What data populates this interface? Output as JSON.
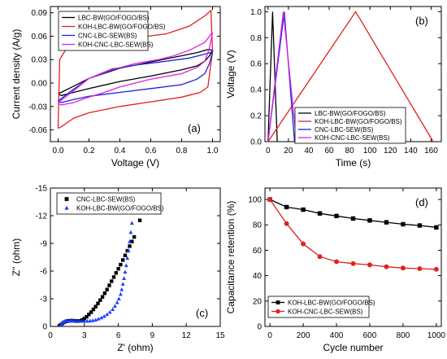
{
  "chart_data": [
    {
      "type": "line",
      "panel_label": "(a)",
      "xlabel": "Voltage (V)",
      "ylabel": "Current density (A/g)",
      "xlim": [
        -0.05,
        1.05
      ],
      "ylim": [
        -0.075,
        0.098
      ],
      "xticks": [
        0.0,
        0.2,
        0.4,
        0.6,
        0.8,
        1.0
      ],
      "xtick_labels": [
        "0.0",
        "0.2",
        "0.4",
        "0.6",
        "0.8",
        "1.0"
      ],
      "yticks": [
        -0.06,
        -0.03,
        0.0,
        0.03,
        0.06,
        0.09
      ],
      "ytick_labels": [
        "-0.06",
        "-0.03",
        "0.00",
        "0.03",
        "0.06",
        "0.09"
      ],
      "legend_position": "top-left",
      "series": [
        {
          "name": "LBC-BW(GO/FOGO/BS)",
          "color": "#000000",
          "x": [
            0.0,
            0.02,
            0.1,
            0.2,
            0.4,
            0.6,
            0.8,
            0.9,
            0.97,
            1.0,
            0.98,
            0.95,
            0.9,
            0.8,
            0.6,
            0.4,
            0.2,
            0.1,
            0.02,
            0.0
          ],
          "y": [
            -0.013,
            -0.012,
            -0.004,
            0.006,
            0.019,
            0.027,
            0.035,
            0.039,
            0.043,
            0.042,
            0.035,
            0.028,
            0.022,
            0.017,
            0.009,
            0.002,
            -0.007,
            -0.012,
            -0.016,
            -0.013
          ]
        },
        {
          "name": "KOH-LBC-BW(GO/FOGO/BS)",
          "color": "#e02020",
          "x": [
            0.0,
            0.01,
            0.05,
            0.15,
            0.3,
            0.5,
            0.7,
            0.85,
            0.95,
            0.99,
            1.0,
            0.97,
            0.92,
            0.8,
            0.6,
            0.4,
            0.2,
            0.1,
            0.05,
            0.02,
            0.0
          ],
          "y": [
            -0.058,
            0.03,
            0.043,
            0.05,
            0.054,
            0.058,
            0.063,
            0.073,
            0.086,
            0.093,
            0.04,
            -0.005,
            -0.012,
            -0.018,
            -0.024,
            -0.03,
            -0.038,
            -0.045,
            -0.052,
            -0.056,
            -0.058
          ]
        },
        {
          "name": "CNC-LBC-SEW(BS)",
          "color": "#2020e0",
          "x": [
            0.0,
            0.02,
            0.1,
            0.2,
            0.35,
            0.5,
            0.7,
            0.85,
            0.95,
            1.0,
            0.98,
            0.95,
            0.9,
            0.8,
            0.6,
            0.4,
            0.2,
            0.1,
            0.02,
            0.0
          ],
          "y": [
            -0.023,
            -0.02,
            -0.008,
            0.006,
            0.018,
            0.023,
            0.028,
            0.032,
            0.037,
            0.04,
            0.025,
            0.012,
            0.005,
            -0.002,
            -0.007,
            -0.012,
            -0.017,
            -0.021,
            -0.025,
            -0.023
          ]
        },
        {
          "name": "KOH-CNC-LBC-SEW(BS)",
          "color": "#e020e0",
          "x": [
            0.0,
            0.02,
            0.1,
            0.2,
            0.35,
            0.5,
            0.65,
            0.75,
            0.85,
            0.95,
            1.0,
            0.98,
            0.95,
            0.9,
            0.8,
            0.6,
            0.4,
            0.3,
            0.2,
            0.1,
            0.02,
            0.0
          ],
          "y": [
            -0.026,
            -0.022,
            -0.01,
            0.006,
            0.017,
            0.025,
            0.03,
            0.035,
            0.042,
            0.052,
            0.065,
            0.045,
            0.028,
            0.02,
            0.012,
            0.005,
            -0.005,
            -0.012,
            -0.018,
            -0.025,
            -0.028,
            -0.026
          ]
        }
      ]
    },
    {
      "type": "line",
      "panel_label": "(b)",
      "xlabel": "Time (s)",
      "ylabel": "Voltage (V)",
      "xlim": [
        -3,
        170
      ],
      "ylim": [
        0,
        1.04
      ],
      "xticks": [
        0,
        20,
        40,
        60,
        80,
        100,
        120,
        140,
        160
      ],
      "xtick_labels": [
        "0",
        "20",
        "40",
        "60",
        "80",
        "100",
        "120",
        "140",
        "160"
      ],
      "yticks": [
        0.0,
        0.2,
        0.4,
        0.6,
        0.8,
        1.0
      ],
      "ytick_labels": [
        "0.0",
        "0.2",
        "0.4",
        "0.6",
        "0.8",
        "1.0"
      ],
      "legend_position": "bottom-left",
      "series": [
        {
          "name": "LBC-BW(GO/FOGO/BS)",
          "color": "#000000",
          "x": [
            0,
            4.5,
            9
          ],
          "y": [
            0,
            1.0,
            0
          ]
        },
        {
          "name": "KOH-LBC-BW(GO/FOGO/BS)",
          "color": "#e02020",
          "x": [
            0,
            86,
            162
          ],
          "y": [
            0,
            1.0,
            0
          ]
        },
        {
          "name": "CNC-LBC-SEW(BS)",
          "color": "#2020e0",
          "x": [
            0,
            16,
            26
          ],
          "y": [
            0,
            1.0,
            0
          ]
        },
        {
          "name": "KOH-CNC-LBC-SEW(BS)",
          "color": "#e020e0",
          "x": [
            0,
            15,
            28
          ],
          "y": [
            0,
            1.0,
            0
          ]
        }
      ]
    },
    {
      "type": "scatter",
      "panel_label": "(c)",
      "xlabel": "Z' (ohm)",
      "ylabel": "Z'' (ohm)",
      "xlim": [
        0,
        15
      ],
      "ylim": [
        0,
        -15
      ],
      "xticks": [
        0,
        3,
        6,
        9,
        12,
        15
      ],
      "xtick_labels": [
        "0",
        "3",
        "6",
        "9",
        "12",
        "15"
      ],
      "yticks": [
        0,
        -3,
        -6,
        -9,
        -12,
        -15
      ],
      "ytick_labels": [
        "0",
        "-3",
        "-6",
        "-9",
        "-12",
        "-15"
      ],
      "legend_position": "top-left",
      "series": [
        {
          "name": "CNC-LBC-SEW(BS)",
          "color": "#000000",
          "marker": "square",
          "x": [
            0.8,
            0.9,
            1.05,
            1.2,
            1.4,
            1.6,
            1.8,
            2.0,
            2.2,
            2.4,
            2.6,
            2.8,
            3.0,
            3.2,
            3.4,
            3.6,
            3.8,
            4.0,
            4.2,
            4.4,
            4.6,
            4.8,
            5.0,
            5.2,
            5.4,
            5.6,
            5.8,
            6.0,
            6.2,
            6.4,
            6.6,
            6.8,
            7.0,
            7.2,
            7.4,
            7.9
          ],
          "y": [
            -0.05,
            -0.15,
            -0.3,
            -0.45,
            -0.55,
            -0.6,
            -0.62,
            -0.62,
            -0.6,
            -0.58,
            -0.6,
            -0.7,
            -0.85,
            -1.05,
            -1.3,
            -1.55,
            -1.85,
            -2.15,
            -2.5,
            -2.85,
            -3.2,
            -3.6,
            -4.0,
            -4.45,
            -4.9,
            -5.35,
            -5.8,
            -6.25,
            -6.7,
            -7.2,
            -7.7,
            -8.2,
            -8.7,
            -9.2,
            -9.7,
            -11.5
          ]
        },
        {
          "name": "KOH-LBC-BW(GO/FOGO/BS)",
          "color": "#1a40ff",
          "marker": "triangle",
          "x": [
            0.9,
            1.0,
            1.1,
            1.25,
            1.4,
            1.6,
            1.8,
            2.0,
            2.25,
            2.5,
            2.75,
            3.0,
            3.25,
            3.5,
            3.75,
            4.0,
            4.25,
            4.5,
            4.75,
            5.0,
            5.25,
            5.5,
            5.7,
            5.9,
            6.05,
            6.2,
            6.3,
            6.4,
            6.5,
            6.6,
            6.7,
            6.8,
            6.9,
            7.0,
            7.1,
            7.2
          ],
          "y": [
            -0.1,
            -0.3,
            -0.45,
            -0.55,
            -0.6,
            -0.62,
            -0.63,
            -0.63,
            -0.62,
            -0.6,
            -0.58,
            -0.57,
            -0.58,
            -0.6,
            -0.65,
            -0.72,
            -0.82,
            -0.95,
            -1.1,
            -1.3,
            -1.55,
            -1.85,
            -2.2,
            -2.6,
            -3.0,
            -3.5,
            -4.0,
            -4.6,
            -5.2,
            -5.9,
            -6.6,
            -7.4,
            -8.2,
            -9.2,
            -10.2,
            -11.2
          ]
        }
      ]
    },
    {
      "type": "line",
      "panel_label": "(d)",
      "xlabel": "Cycle number",
      "ylabel": "Capacitance retention (%)",
      "xlim": [
        -30,
        1030
      ],
      "ylim": [
        0,
        109
      ],
      "xticks": [
        0,
        200,
        400,
        600,
        800,
        1000
      ],
      "xtick_labels": [
        "0",
        "200",
        "400",
        "600",
        "800",
        "1000"
      ],
      "yticks": [
        0,
        20,
        40,
        60,
        80,
        100
      ],
      "ytick_labels": [
        "0",
        "20",
        "40",
        "60",
        "80",
        "100"
      ],
      "legend_position": "bottom-left",
      "series": [
        {
          "name": "KOH-LBC-BW(GO/FOGO/BS)",
          "color": "#000000",
          "marker": "square",
          "x": [
            0,
            100,
            200,
            300,
            400,
            500,
            600,
            700,
            800,
            900,
            1000
          ],
          "y": [
            100,
            94,
            92,
            89,
            87,
            85,
            83.5,
            82,
            80.5,
            79.5,
            78
          ]
        },
        {
          "name": "KOH-CNC-LBC-SEW(BS)",
          "color": "#e02020",
          "marker": "circle",
          "x": [
            0,
            100,
            200,
            300,
            400,
            500,
            600,
            700,
            800,
            900,
            1000
          ],
          "y": [
            100,
            81,
            65,
            55,
            51,
            49.5,
            48.5,
            47,
            46,
            45.5,
            45
          ]
        }
      ]
    }
  ]
}
